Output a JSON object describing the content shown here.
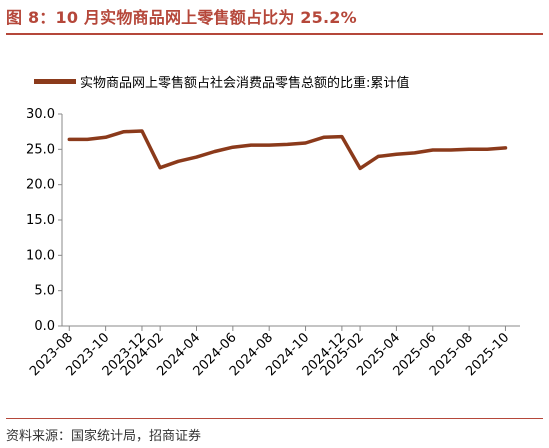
{
  "header": {
    "title": "图 8：10 月实物商品网上零售额占比为 25.2%"
  },
  "footer": {
    "source": "资料来源：国家统计局，招商证券"
  },
  "colors": {
    "title": "#b5473a",
    "series": "#8b3a1b"
  },
  "chart_data": {
    "type": "line",
    "legend_position": "top",
    "grid": false,
    "ylim": [
      0,
      30
    ],
    "yticks": [
      "0.0",
      "5.0",
      "10.0",
      "15.0",
      "20.0",
      "25.0",
      "30.0"
    ],
    "x": [
      "2023-08",
      "2023-09",
      "2023-10",
      "2023-11",
      "2023-12",
      "2024-02",
      "2024-03",
      "2024-04",
      "2024-05",
      "2024-06",
      "2024-07",
      "2024-08",
      "2024-09",
      "2024-10",
      "2024-11",
      "2024-12",
      "2025-02",
      "2025-03",
      "2025-04",
      "2025-05",
      "2025-06",
      "2025-07",
      "2025-08",
      "2025-09",
      "2025-10"
    ],
    "xtick_labels": [
      "2023-08",
      "2023-10",
      "2023-12",
      "2024-02",
      "2024-04",
      "2024-06",
      "2024-08",
      "2024-10",
      "2024-12",
      "2025-02",
      "2025-04",
      "2025-06",
      "2025-08",
      "2025-10"
    ],
    "series": [
      {
        "name": "实物商品网上零售额占社会消费品零售总额的比重:累计值",
        "values": [
          26.4,
          26.4,
          26.7,
          27.5,
          27.6,
          22.4,
          23.3,
          23.9,
          24.7,
          25.3,
          25.6,
          25.6,
          25.7,
          25.9,
          26.7,
          26.8,
          22.3,
          24.0,
          24.3,
          24.5,
          24.9,
          24.9,
          25.0,
          25.0,
          25.2
        ]
      }
    ]
  }
}
